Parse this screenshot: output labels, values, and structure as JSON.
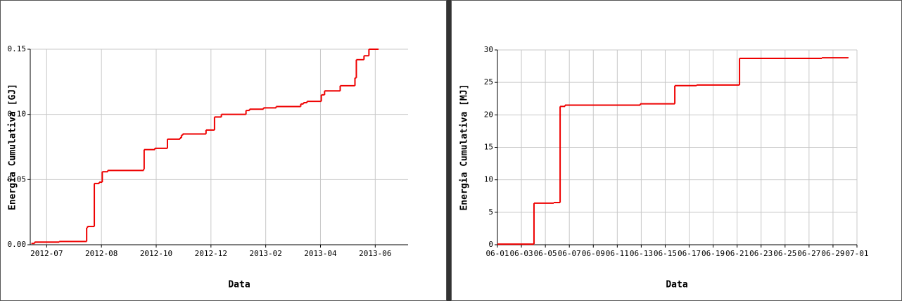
{
  "chart_data": [
    {
      "type": "step",
      "x_label": "Data",
      "y_label": "Energia Cumulativa [GJ]",
      "color": "#ee0000",
      "grid": true,
      "x": [
        -0.56,
        -0.44,
        0.46,
        1.46,
        1.49,
        1.74,
        1.92,
        2.03,
        2.23,
        3.54,
        3.56,
        3.95,
        4.41,
        4.87,
        4.92,
        4.97,
        5.82,
        6.13,
        6.38,
        7.28,
        7.41,
        7.92,
        8.38,
        9.28,
        9.38,
        9.51,
        10.03,
        10.15,
        10.72,
        11.26,
        11.31,
        11.59,
        11.77,
        12.1
      ],
      "values": [
        0.001,
        0.002,
        0.0025,
        0.013,
        0.014,
        0.047,
        0.048,
        0.056,
        0.057,
        0.058,
        0.073,
        0.074,
        0.081,
        0.082,
        0.084,
        0.085,
        0.088,
        0.098,
        0.1,
        0.103,
        0.104,
        0.105,
        0.106,
        0.108,
        0.109,
        0.11,
        0.115,
        0.118,
        0.122,
        0.128,
        0.142,
        0.145,
        0.15,
        0.15
      ],
      "xlim": [
        -0.6,
        13.2
      ],
      "xticks": [
        {
          "value": 0,
          "label": "2012-07"
        },
        {
          "value": 2,
          "label": "2012-08"
        },
        {
          "value": 4,
          "label": "2012-10"
        },
        {
          "value": 6,
          "label": "2012-12"
        },
        {
          "value": 8,
          "label": "2013-02"
        },
        {
          "value": 10,
          "label": "2013-04"
        },
        {
          "value": 12,
          "label": "2013-06"
        }
      ],
      "ylim": [
        0,
        0.15
      ],
      "yticks": [
        {
          "value": 0,
          "label": "0.00"
        },
        {
          "value": 0.05,
          "label": "0.05"
        },
        {
          "value": 0.1,
          "label": "0.10"
        },
        {
          "value": 0.15,
          "label": "0.15"
        }
      ]
    },
    {
      "type": "step",
      "x_label": "Data",
      "y_label": "Energia Cumulativa [MJ]",
      "color": "#ee0000",
      "grid": true,
      "x": [
        1,
        4.05,
        5.7,
        6.23,
        6.64,
        12.92,
        15.8,
        17.62,
        21.2,
        28.07,
        30.24
      ],
      "values": [
        0.1,
        6.4,
        6.5,
        21.3,
        21.5,
        21.7,
        24.5,
        24.6,
        28.7,
        28.8,
        28.8
      ],
      "xlim": [
        1,
        31
      ],
      "xticks": [
        {
          "value": 1,
          "label": "06-01"
        },
        {
          "value": 3,
          "label": "06-03"
        },
        {
          "value": 5,
          "label": "06-05"
        },
        {
          "value": 7,
          "label": "06-07"
        },
        {
          "value": 9,
          "label": "06-09"
        },
        {
          "value": 11,
          "label": "06-11"
        },
        {
          "value": 13,
          "label": "06-13"
        },
        {
          "value": 15,
          "label": "06-15"
        },
        {
          "value": 17,
          "label": "06-17"
        },
        {
          "value": 19,
          "label": "06-19"
        },
        {
          "value": 21,
          "label": "06-21"
        },
        {
          "value": 23,
          "label": "06-23"
        },
        {
          "value": 25,
          "label": "06-25"
        },
        {
          "value": 27,
          "label": "06-27"
        },
        {
          "value": 29,
          "label": "06-29"
        },
        {
          "value": 31,
          "label": "07-01"
        }
      ],
      "ylim": [
        0,
        30
      ],
      "yticks": [
        0,
        5,
        10,
        15,
        20,
        25,
        30
      ]
    }
  ]
}
